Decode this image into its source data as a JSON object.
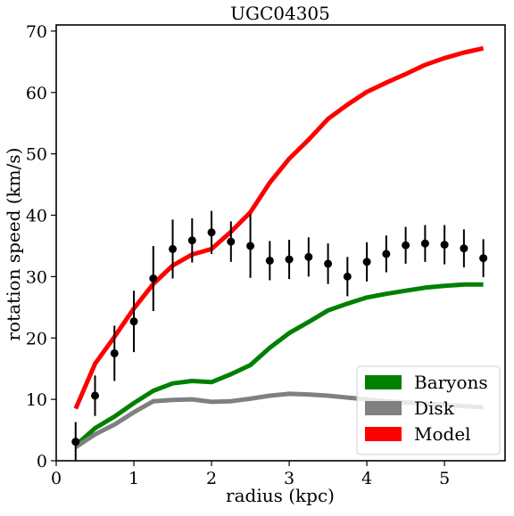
{
  "chart_data": {
    "type": "line",
    "title": "UGC04305",
    "xlabel": "radius (kpc)",
    "ylabel": "rotation speed (km/s)",
    "xlim": [
      0,
      5.78
    ],
    "ylim": [
      0,
      71
    ],
    "xticks": [
      0,
      1,
      2,
      3,
      4,
      5
    ],
    "yticks": [
      0,
      10,
      20,
      30,
      40,
      50,
      60,
      70
    ],
    "grid": false,
    "legend_position": "lower-right",
    "series": [
      {
        "name": "Baryons",
        "color": "#008000",
        "x": [
          0.25,
          0.5,
          0.75,
          1.0,
          1.25,
          1.5,
          1.75,
          2.0,
          2.25,
          2.5,
          2.75,
          3.0,
          3.25,
          3.5,
          3.75,
          4.0,
          4.25,
          4.5,
          4.75,
          5.0,
          5.25,
          5.5
        ],
        "y": [
          2.5,
          5.3,
          7.2,
          9.4,
          11.4,
          12.6,
          13.0,
          12.8,
          14.1,
          15.6,
          18.4,
          20.8,
          22.6,
          24.5,
          25.6,
          26.6,
          27.2,
          27.7,
          28.2,
          28.5,
          28.7,
          28.7
        ]
      },
      {
        "name": "Disk",
        "color": "#808080",
        "x": [
          0.25,
          0.5,
          0.75,
          1.0,
          1.25,
          1.5,
          1.75,
          2.0,
          2.25,
          2.5,
          2.75,
          3.0,
          3.25,
          3.5,
          3.75,
          4.0,
          4.25,
          4.5,
          4.75,
          5.0,
          5.25,
          5.5
        ],
        "y": [
          2.2,
          4.3,
          5.9,
          7.9,
          9.7,
          9.9,
          10.0,
          9.6,
          9.7,
          10.1,
          10.6,
          10.9,
          10.8,
          10.6,
          10.3,
          10.0,
          9.7,
          9.5,
          9.3,
          9.1,
          8.9,
          8.7
        ]
      },
      {
        "name": "Model",
        "color": "#ff0000",
        "x": [
          0.25,
          0.5,
          0.75,
          1.0,
          1.25,
          1.5,
          1.75,
          2.0,
          2.25,
          2.5,
          2.75,
          3.0,
          3.25,
          3.5,
          3.75,
          4.0,
          4.25,
          4.5,
          4.75,
          5.0,
          5.25,
          5.5
        ],
        "y": [
          8.5,
          15.8,
          20.2,
          24.8,
          28.8,
          31.8,
          33.6,
          34.5,
          37.3,
          40.5,
          45.3,
          49.2,
          52.3,
          55.7,
          58.0,
          60.1,
          61.6,
          63.0,
          64.5,
          65.6,
          66.5,
          67.2
        ]
      }
    ],
    "observed": {
      "color": "#000000",
      "x": [
        0.25,
        0.5,
        0.75,
        1.0,
        1.25,
        1.5,
        1.75,
        2.0,
        2.25,
        2.5,
        2.75,
        3.0,
        3.25,
        3.5,
        3.75,
        4.0,
        4.25,
        4.5,
        4.75,
        5.0,
        5.25,
        5.5
      ],
      "y": [
        3.1,
        10.6,
        17.5,
        22.7,
        29.7,
        34.5,
        35.9,
        37.2,
        35.7,
        35.0,
        32.6,
        32.8,
        33.2,
        32.1,
        30.0,
        32.4,
        33.7,
        35.1,
        35.4,
        35.2,
        34.6,
        33.0
      ],
      "yerr": [
        3.2,
        3.3,
        4.5,
        5.0,
        5.3,
        4.8,
        3.6,
        3.5,
        3.3,
        5.2,
        3.2,
        3.2,
        3.2,
        3.3,
        3.2,
        3.2,
        3.0,
        3.0,
        3.0,
        3.2,
        3.1,
        3.1
      ]
    }
  }
}
